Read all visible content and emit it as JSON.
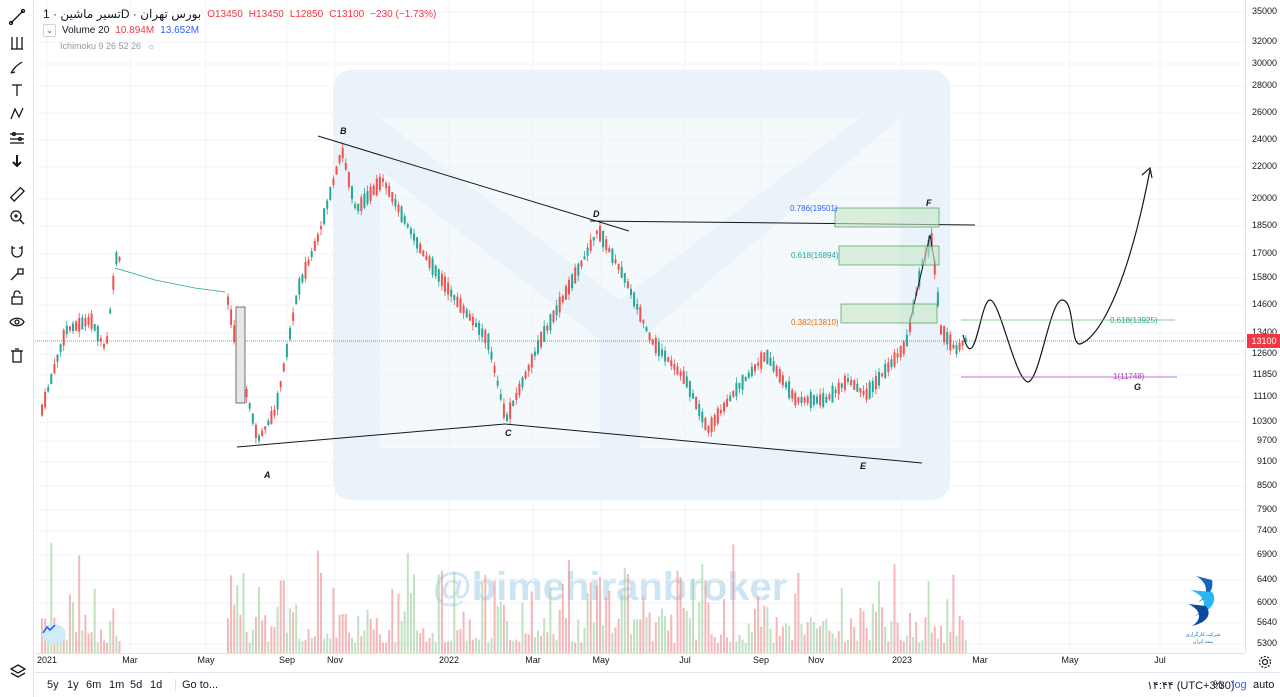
{
  "legend": {
    "symbol": "تسیر ماشین · 1D · بورس تهران",
    "open": "O13450",
    "high": "H13450",
    "low": "L12850",
    "close": "C13100",
    "change": "−230 (−1.73%)",
    "volume_label": "Volume 20",
    "volume_a": "10.894M",
    "volume_b": "13.652M",
    "ichimoku": "Ichimoku 9 26 52 26"
  },
  "price_axis": {
    "ticks": [
      "35000",
      "32000",
      "30000",
      "28000",
      "26000",
      "24000",
      "22000",
      "20000",
      "18500",
      "17000",
      "15800",
      "14600",
      "13400",
      "12600",
      "11850",
      "11100",
      "10300",
      "9700",
      "9100",
      "8500",
      "7900",
      "7400",
      "6900",
      "6400",
      "6000",
      "5640",
      "5300"
    ],
    "last_price": "13100"
  },
  "time_axis": {
    "ticks": [
      "2021",
      "Mar",
      "May",
      "Sep",
      "Nov",
      "2022",
      "Mar",
      "May",
      "Jul",
      "Sep",
      "Nov",
      "2023",
      "Mar",
      "May",
      "Jul"
    ]
  },
  "annotations": {
    "points": [
      "A",
      "B",
      "C",
      "D",
      "E",
      "F",
      "G"
    ],
    "fib_0786": "0.786(19501)",
    "fib_0618": "0.618(16894)",
    "fib_0382": "0.382(13810)",
    "fib_right_0618": "0.618(13925)",
    "fib_right_1": "1(11748)"
  },
  "watermark": "@bimehiranbroker",
  "logo": {
    "line1": "شرکت کارگزاری",
    "line2": "بیمه ایران"
  },
  "bottom_bar": {
    "ranges": [
      "5y",
      "1y",
      "6m",
      "1m",
      "5d",
      "1d"
    ],
    "goto": "Go to...",
    "time": "۱۴:۴۴ (UTC+3:30)",
    "percent": "%",
    "log": "log",
    "auto": "auto"
  },
  "colors": {
    "up": "#26a69a",
    "down": "#ef5350",
    "price_line": "#f23645",
    "fib_box": "#c8e6c9"
  },
  "icons": [
    "trend-line-icon",
    "fork-icon",
    "brush-icon",
    "text-icon",
    "pattern-icon",
    "forecast-icon",
    "arrow-down-icon",
    "ruler-icon",
    "zoom-icon",
    "magnet-icon",
    "lock-draw-icon",
    "lock-icon",
    "eye-icon",
    "trash-icon",
    "layers-icon",
    "gear-icon"
  ]
}
